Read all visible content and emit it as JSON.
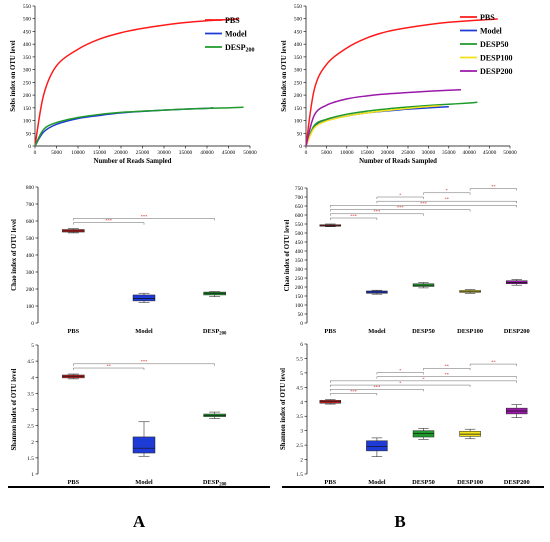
{
  "chart_data": [
    {
      "id": "A-rarefaction",
      "type": "line",
      "ylabel": "Sobs index on OTU level",
      "xlabel": "Number of Reads Sampled",
      "xlim": [
        0,
        50000
      ],
      "ylim": [
        0,
        550
      ],
      "xticks": [
        0,
        5000,
        10000,
        15000,
        20000,
        25000,
        30000,
        35000,
        40000,
        45000,
        50000
      ],
      "yticks": [
        0,
        50,
        100,
        150,
        200,
        250,
        300,
        350,
        400,
        450,
        500,
        550
      ],
      "legend_position": "top-right",
      "grid": false,
      "series": [
        {
          "name": "PBS",
          "color": "#ff1a1a",
          "x": [
            0,
            2000,
            5000,
            10000,
            15000,
            20000,
            25000,
            30000,
            35000,
            40000,
            45000,
            47500
          ],
          "y": [
            0,
            200,
            315,
            380,
            420,
            445,
            462,
            475,
            485,
            492,
            497,
            500
          ]
        },
        {
          "name": "Model",
          "color": "#1f3bd6",
          "x": [
            0,
            2000,
            5000,
            10000,
            15000,
            20000,
            25000,
            30000,
            35000,
            40000,
            41500
          ],
          "y": [
            0,
            55,
            85,
            108,
            120,
            130,
            136,
            141,
            145,
            148,
            150
          ]
        },
        {
          "name": "DESP200",
          "color": "#1f9a2a",
          "x": [
            0,
            2000,
            5000,
            10000,
            15000,
            20000,
            25000,
            30000,
            35000,
            40000,
            45000,
            48500
          ],
          "y": [
            0,
            65,
            92,
            112,
            124,
            132,
            137,
            141,
            145,
            148,
            150,
            152
          ]
        }
      ]
    },
    {
      "id": "B-rarefaction",
      "type": "line",
      "ylabel": "Sobs index on OTU level",
      "xlabel": "Number of Reads Sampled",
      "xlim": [
        0,
        50000
      ],
      "ylim": [
        0,
        550
      ],
      "xticks": [
        0,
        5000,
        10000,
        15000,
        20000,
        25000,
        30000,
        35000,
        40000,
        45000,
        50000
      ],
      "yticks": [
        0,
        50,
        100,
        150,
        200,
        250,
        300,
        350,
        400,
        450,
        500,
        550
      ],
      "legend_position": "top-right",
      "grid": false,
      "series": [
        {
          "name": "PBS",
          "color": "#ff1a1a",
          "x": [
            0,
            2000,
            5000,
            10000,
            15000,
            20000,
            25000,
            30000,
            35000,
            40000,
            45000,
            47000
          ],
          "y": [
            0,
            220,
            320,
            385,
            425,
            450,
            465,
            477,
            486,
            492,
            497,
            499
          ]
        },
        {
          "name": "Model",
          "color": "#1f3bd6",
          "x": [
            0,
            2000,
            5000,
            10000,
            15000,
            20000,
            25000,
            30000,
            35000
          ],
          "y": [
            0,
            75,
            100,
            118,
            130,
            138,
            145,
            150,
            154
          ]
        },
        {
          "name": "DESP50",
          "color": "#1f9a2a",
          "x": [
            0,
            2000,
            5000,
            10000,
            15000,
            20000,
            25000,
            30000,
            35000,
            40000,
            42000
          ],
          "y": [
            0,
            80,
            105,
            125,
            137,
            146,
            153,
            159,
            164,
            169,
            172
          ]
        },
        {
          "name": "DESP100",
          "color": "#f2e21a",
          "x": [
            0,
            2000,
            5000,
            10000,
            15000,
            20000,
            25000,
            30000,
            33000
          ],
          "y": [
            0,
            70,
            98,
            118,
            130,
            140,
            148,
            155,
            158
          ]
        },
        {
          "name": "DESP200",
          "color": "#9a19a8",
          "x": [
            0,
            2000,
            5000,
            10000,
            15000,
            20000,
            25000,
            30000,
            35000,
            38000
          ],
          "y": [
            0,
            120,
            160,
            185,
            197,
            205,
            210,
            215,
            219,
            221
          ]
        }
      ]
    },
    {
      "id": "A-chao",
      "type": "box",
      "ylabel": "Chao index of OTU level",
      "ylim": [
        0,
        800
      ],
      "yticks": [
        0,
        100,
        200,
        300,
        400,
        500,
        600,
        700,
        800
      ],
      "categories": [
        "PBS",
        "Model",
        "DESP200"
      ],
      "colors": [
        "#d62020",
        "#1f3bd6",
        "#1f9a2a"
      ],
      "boxes": [
        [
          530,
          535,
          542,
          550,
          555
        ],
        [
          120,
          130,
          145,
          165,
          175
        ],
        [
          155,
          165,
          175,
          182,
          185
        ]
      ],
      "significance": [
        {
          "from": 0,
          "to": 1,
          "label": "***"
        },
        {
          "from": 0,
          "to": 2,
          "label": "***"
        }
      ]
    },
    {
      "id": "B-chao",
      "type": "box",
      "ylabel": "Chao index of OTU level",
      "ylim": [
        0,
        750
      ],
      "yticks": [
        0,
        50,
        100,
        150,
        200,
        250,
        300,
        350,
        400,
        450,
        500,
        550,
        600,
        650,
        700,
        750
      ],
      "categories": [
        "PBS",
        "Model",
        "DESP50",
        "DESP100",
        "DESP200"
      ],
      "colors": [
        "#d62020",
        "#1f3bd6",
        "#1f9a2a",
        "#f2e21a",
        "#9a19a8"
      ],
      "boxes": [
        [
          535,
          538,
          542,
          546,
          550
        ],
        [
          160,
          165,
          172,
          178,
          182
        ],
        [
          195,
          203,
          210,
          218,
          225
        ],
        [
          165,
          170,
          176,
          181,
          186
        ],
        [
          210,
          218,
          225,
          235,
          242
        ]
      ],
      "significance": [
        {
          "from": 0,
          "to": 1,
          "label": "***"
        },
        {
          "from": 0,
          "to": 2,
          "label": "***"
        },
        {
          "from": 0,
          "to": 3,
          "label": "***"
        },
        {
          "from": 0,
          "to": 4,
          "label": "***"
        },
        {
          "from": 1,
          "to": 4,
          "label": "**"
        },
        {
          "from": 1,
          "to": 2,
          "label": "*"
        },
        {
          "from": 2,
          "to": 3,
          "label": "*"
        },
        {
          "from": 3,
          "to": 4,
          "label": "**"
        }
      ]
    },
    {
      "id": "A-shannon",
      "type": "box",
      "ylabel": "Shannon index of OTU level",
      "ylim": [
        1,
        5
      ],
      "yticks": [
        1,
        1.5,
        2,
        2.5,
        3,
        3.5,
        4,
        4.5,
        5
      ],
      "categories": [
        "PBS",
        "Model",
        "DESP200"
      ],
      "colors": [
        "#d62020",
        "#1f3bd6",
        "#1f9a2a"
      ],
      "boxes": [
        [
          3.95,
          3.98,
          4.03,
          4.07,
          4.1
        ],
        [
          1.55,
          1.65,
          1.8,
          2.15,
          2.62
        ],
        [
          2.72,
          2.78,
          2.82,
          2.86,
          2.92
        ]
      ],
      "significance": [
        {
          "from": 0,
          "to": 1,
          "label": "**"
        },
        {
          "from": 0,
          "to": 2,
          "label": "***"
        }
      ]
    },
    {
      "id": "B-shannon",
      "type": "box",
      "ylabel": "Shannon index of OTU level",
      "ylim": [
        1.5,
        6
      ],
      "yticks": [
        1.5,
        2,
        2.5,
        3,
        3.5,
        4,
        4.5,
        5,
        5.5,
        6
      ],
      "categories": [
        "PBS",
        "Model",
        "DESP50",
        "DESP100",
        "DESP200"
      ],
      "colors": [
        "#d62020",
        "#1f3bd6",
        "#1f9a2a",
        "#f2e21a",
        "#9a19a8"
      ],
      "boxes": [
        [
          3.92,
          3.95,
          4.0,
          4.05,
          4.08
        ],
        [
          2.1,
          2.3,
          2.45,
          2.65,
          2.75
        ],
        [
          2.7,
          2.78,
          2.9,
          3.0,
          3.08
        ],
        [
          2.72,
          2.8,
          2.88,
          2.98,
          3.05
        ],
        [
          3.45,
          3.58,
          3.68,
          3.78,
          3.9
        ]
      ],
      "significance": [
        {
          "from": 0,
          "to": 1,
          "label": "***"
        },
        {
          "from": 0,
          "to": 2,
          "label": "***"
        },
        {
          "from": 0,
          "to": 3,
          "label": "*"
        },
        {
          "from": 0,
          "to": 4,
          "label": "*"
        },
        {
          "from": 1,
          "to": 4,
          "label": "**"
        },
        {
          "from": 1,
          "to": 2,
          "label": "*"
        },
        {
          "from": 2,
          "to": 3,
          "label": "**"
        },
        {
          "from": 3,
          "to": 4,
          "label": "**"
        }
      ]
    }
  ],
  "panels": {
    "left": "A",
    "right": "B"
  }
}
